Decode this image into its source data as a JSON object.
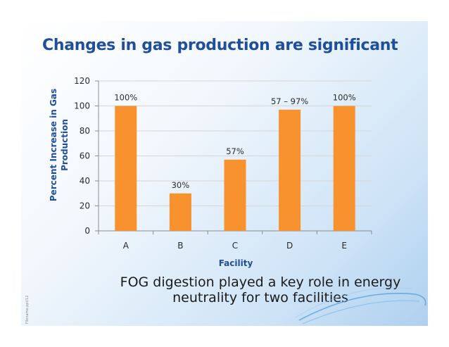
{
  "slide": {
    "title": "Changes in gas production are significant",
    "caption_line1": "FOG digestion played a key role in energy",
    "caption_line2": "neutrality for two facilities",
    "footer_note": "Filename.ppt/12"
  },
  "colors": {
    "bar": "#f7922e",
    "title": "#1f4e9c",
    "grid": "#d6d6d6"
  },
  "chart_data": {
    "type": "bar",
    "categories": [
      "A",
      "B",
      "C",
      "D",
      "E"
    ],
    "values": [
      100,
      30,
      57,
      97,
      100
    ],
    "data_labels": [
      "100%",
      "30%",
      "57%",
      "57 – 97%",
      "100%"
    ],
    "xlabel": "Facility",
    "ylabel_line1": "Percent Increase in Gas",
    "ylabel_line2": "Production",
    "ylim": [
      0,
      120
    ],
    "yticks": [
      0,
      20,
      40,
      60,
      80,
      100,
      120
    ],
    "grid": true,
    "legend": "none"
  }
}
